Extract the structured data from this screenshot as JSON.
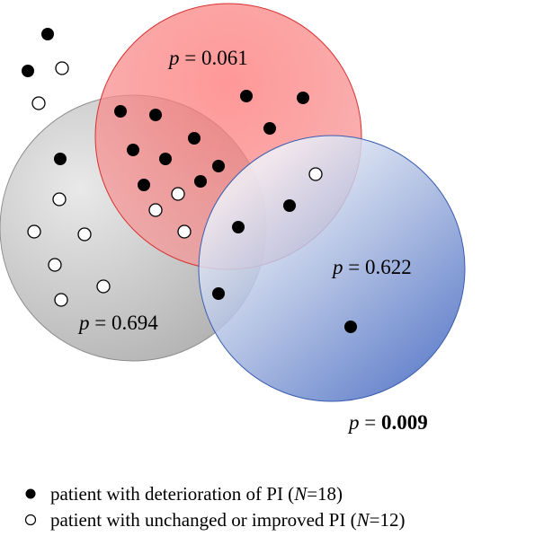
{
  "sets": [
    {
      "id": "red",
      "color": "#f26060"
    },
    {
      "id": "gray",
      "color": "#b8b8b8"
    },
    {
      "id": "blue",
      "color": "#5577c8"
    }
  ],
  "p_values": {
    "red": {
      "prefix": "p",
      "eq": " = ",
      "value": "0.061",
      "bold": false
    },
    "gray": {
      "prefix": "p",
      "eq": " = ",
      "value": "0.694",
      "bold": false
    },
    "blue": {
      "prefix": "p",
      "eq": " = ",
      "value": "0.622",
      "bold": false
    },
    "total": {
      "prefix": "p",
      "eq": " = ",
      "value": "0.009",
      "bold": true
    }
  },
  "legend": {
    "deteriorated": {
      "text": "patient with deterioration of PI (",
      "n_label": "N",
      "n_value": "=18)"
    },
    "unchanged": {
      "text": "patient with unchanged or improved PI (",
      "n_label": "N",
      "n_value": "=12)"
    }
  }
}
